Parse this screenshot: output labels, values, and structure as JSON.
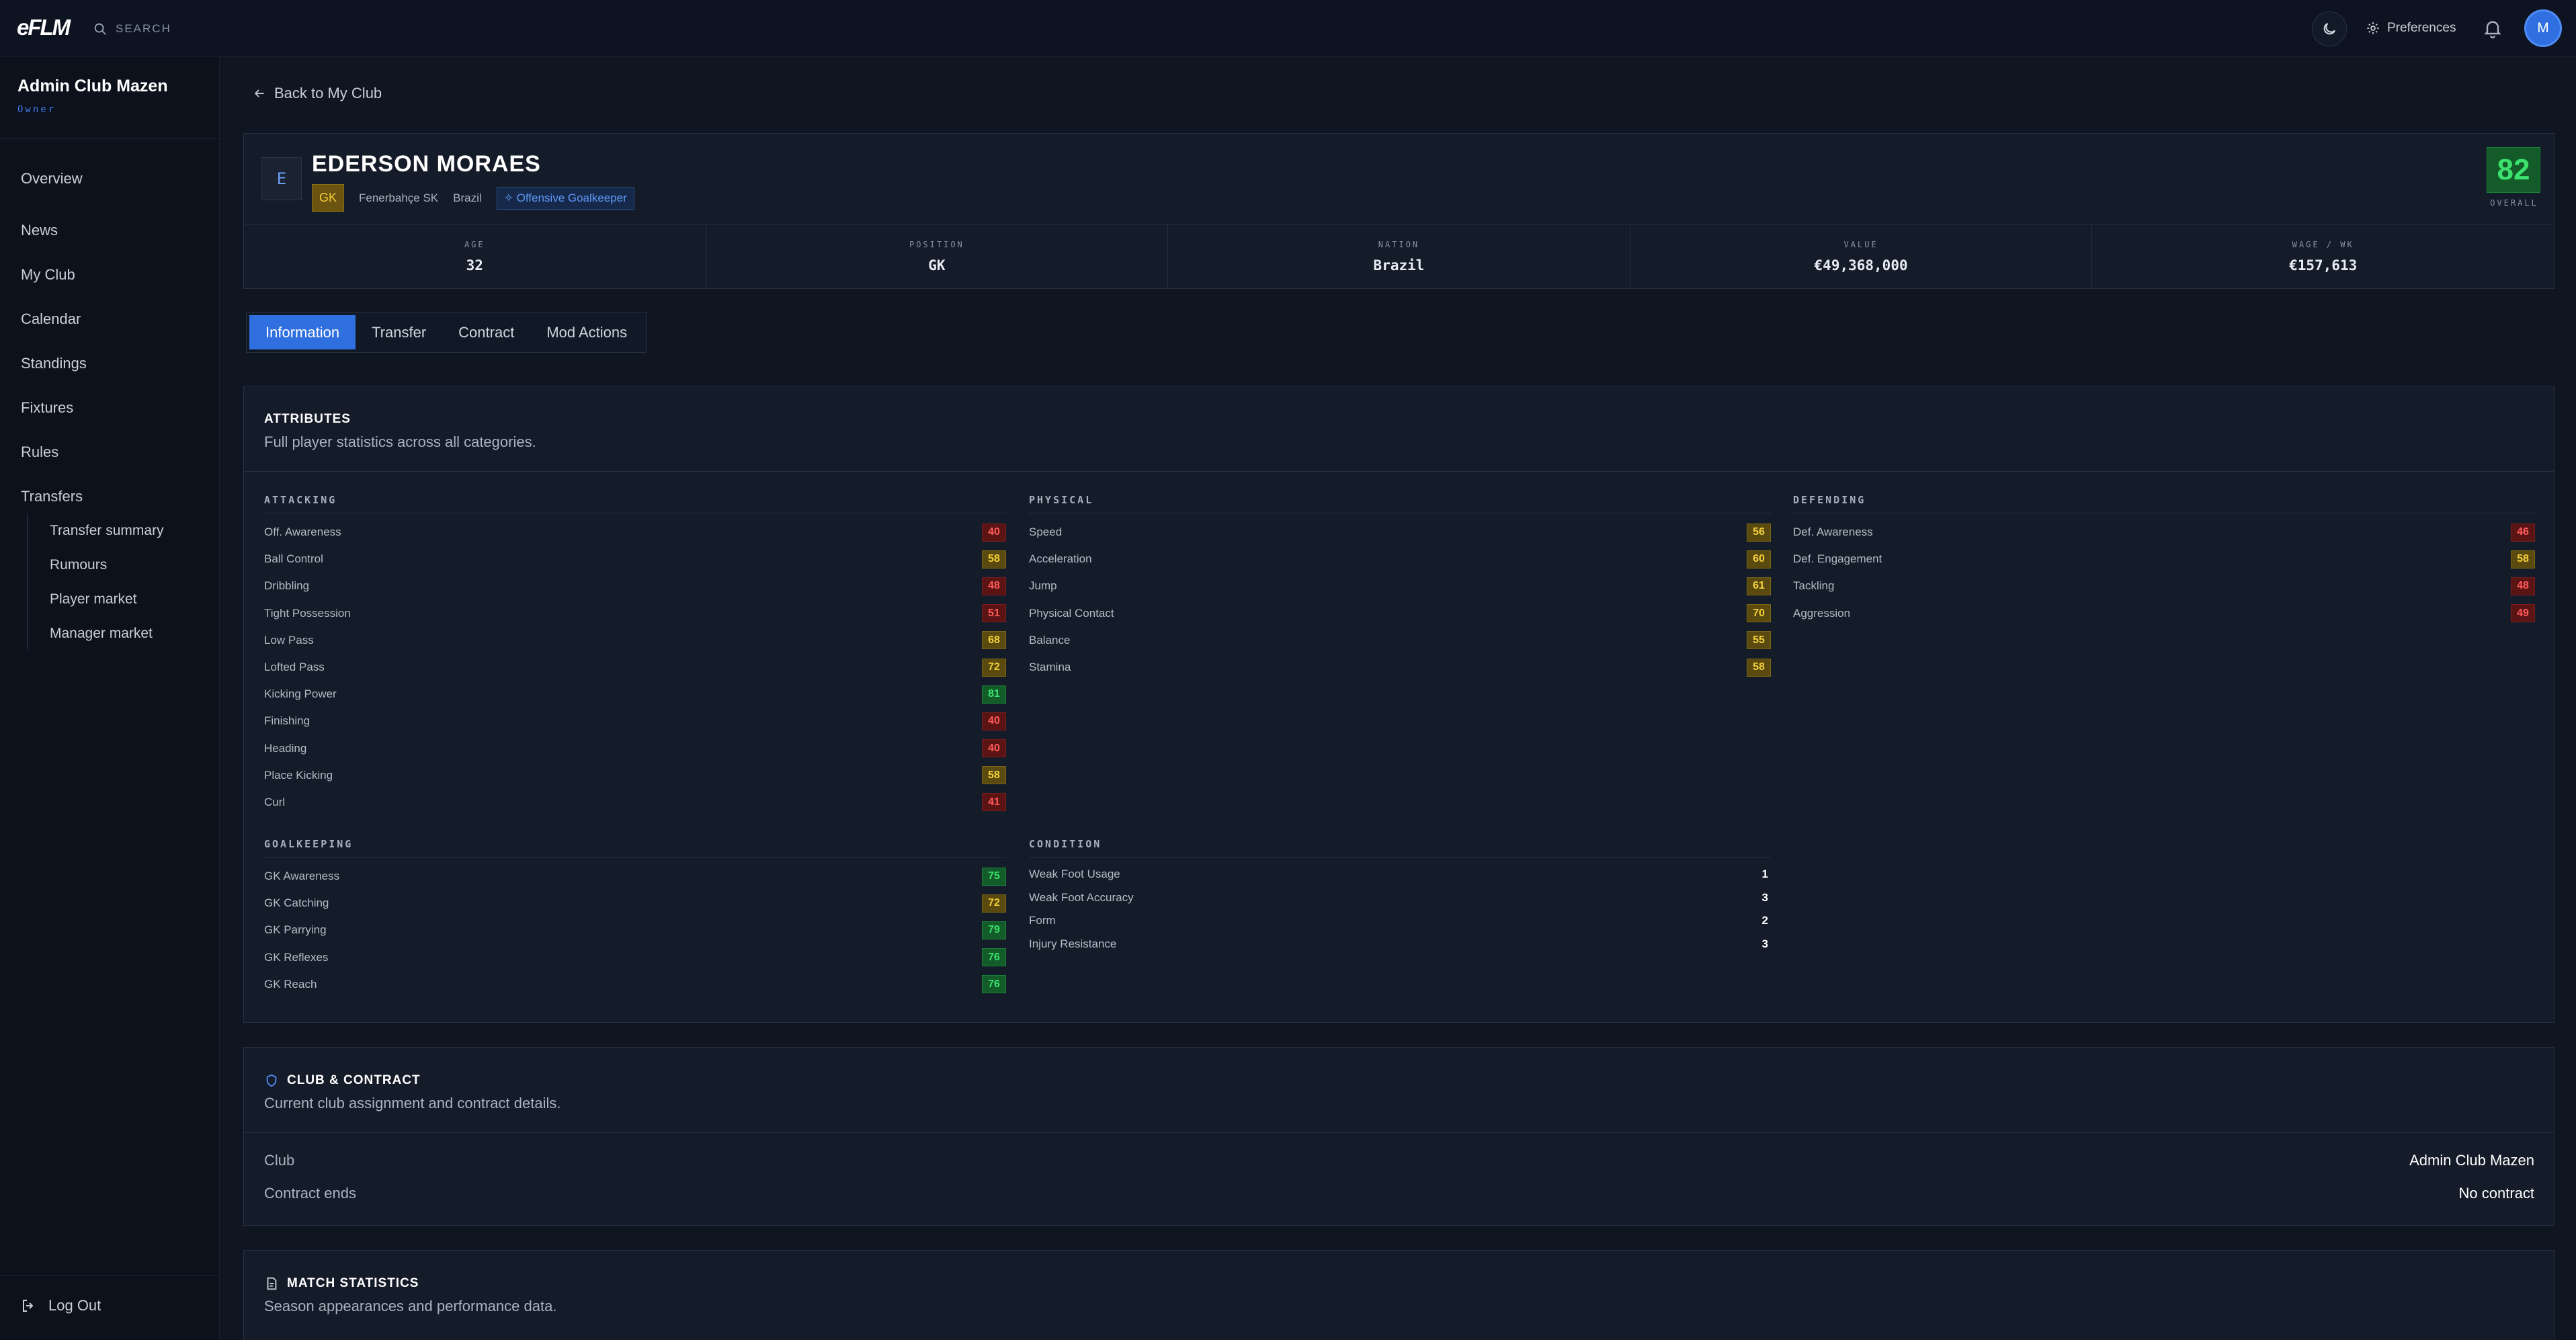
{
  "app": {
    "logo": "eFLM",
    "search_placeholder": "SEARCH",
    "preferences_label": "Preferences",
    "avatar_initial": "M"
  },
  "sidebar": {
    "club_name": "Admin Club Mazen",
    "role": "Owner",
    "nav": [
      {
        "label": "Overview"
      },
      {
        "label": "News"
      },
      {
        "label": "My Club"
      },
      {
        "label": "Calendar"
      },
      {
        "label": "Standings"
      },
      {
        "label": "Fixtures"
      },
      {
        "label": "Rules"
      },
      {
        "label": "Transfers"
      }
    ],
    "transfers_sub": [
      {
        "label": "Transfer summary"
      },
      {
        "label": "Rumours"
      },
      {
        "label": "Player market"
      },
      {
        "label": "Manager market"
      }
    ],
    "logout_label": "Log Out"
  },
  "page": {
    "back_label": "Back to My Club"
  },
  "player": {
    "initial": "E",
    "name": "EDERSON MORAES",
    "position_badge": "GK",
    "club": "Fenerbahçe SK",
    "nation": "Brazil",
    "play_style": "Offensive Goalkeeper",
    "overall": "82",
    "overall_label": "OVERALL",
    "stats": [
      {
        "label": "AGE",
        "value": "32"
      },
      {
        "label": "POSITION",
        "value": "GK"
      },
      {
        "label": "NATION",
        "value": "Brazil"
      },
      {
        "label": "VALUE",
        "value": "€49,368,000"
      },
      {
        "label": "WAGE / WK",
        "value": "€157,613"
      }
    ]
  },
  "tabs": [
    {
      "label": "Information",
      "active": true
    },
    {
      "label": "Transfer",
      "active": false
    },
    {
      "label": "Contract",
      "active": false
    },
    {
      "label": "Mod Actions",
      "active": false
    }
  ],
  "attributes": {
    "title": "ATTRIBUTES",
    "subtitle": "Full player statistics across all categories.",
    "level_colors": {
      "low": "#ff5a5a",
      "mid": "#f2cf3a",
      "high": "#3be06d"
    },
    "attacking": {
      "title": "ATTACKING",
      "items": [
        {
          "label": "Off. Awareness",
          "value": 40
        },
        {
          "label": "Ball Control",
          "value": 58
        },
        {
          "label": "Dribbling",
          "value": 48
        },
        {
          "label": "Tight Possession",
          "value": 51
        },
        {
          "label": "Low Pass",
          "value": 68
        },
        {
          "label": "Lofted Pass",
          "value": 72
        },
        {
          "label": "Kicking Power",
          "value": 81
        },
        {
          "label": "Finishing",
          "value": 40
        },
        {
          "label": "Heading",
          "value": 40
        },
        {
          "label": "Place Kicking",
          "value": 58
        },
        {
          "label": "Curl",
          "value": 41
        }
      ]
    },
    "physical": {
      "title": "PHYSICAL",
      "items": [
        {
          "label": "Speed",
          "value": 56
        },
        {
          "label": "Acceleration",
          "value": 60
        },
        {
          "label": "Jump",
          "value": 61
        },
        {
          "label": "Physical Contact",
          "value": 70
        },
        {
          "label": "Balance",
          "value": 55
        },
        {
          "label": "Stamina",
          "value": 58
        }
      ]
    },
    "defending": {
      "title": "DEFENDING",
      "items": [
        {
          "label": "Def. Awareness",
          "value": 46
        },
        {
          "label": "Def. Engagement",
          "value": 58
        },
        {
          "label": "Tackling",
          "value": 48
        },
        {
          "label": "Aggression",
          "value": 49
        }
      ]
    },
    "goalkeeping": {
      "title": "GOALKEEPING",
      "items": [
        {
          "label": "GK Awareness",
          "value": 75
        },
        {
          "label": "GK Catching",
          "value": 72
        },
        {
          "label": "GK Parrying",
          "value": 79
        },
        {
          "label": "GK Reflexes",
          "value": 76
        },
        {
          "label": "GK Reach",
          "value": 76
        }
      ]
    },
    "condition": {
      "title": "CONDITION",
      "items": [
        {
          "label": "Weak Foot Usage",
          "value": "1"
        },
        {
          "label": "Weak Foot Accuracy",
          "value": "3"
        },
        {
          "label": "Form",
          "value": "2"
        },
        {
          "label": "Injury Resistance",
          "value": "3"
        }
      ]
    }
  },
  "club_contract": {
    "title": "CLUB & CONTRACT",
    "subtitle": "Current club assignment and contract details.",
    "club_label": "Club",
    "club_value": "Admin Club Mazen",
    "contract_label": "Contract ends",
    "contract_value": "No contract"
  },
  "match_stats": {
    "title": "MATCH STATISTICS",
    "subtitle": "Season appearances and performance data."
  }
}
